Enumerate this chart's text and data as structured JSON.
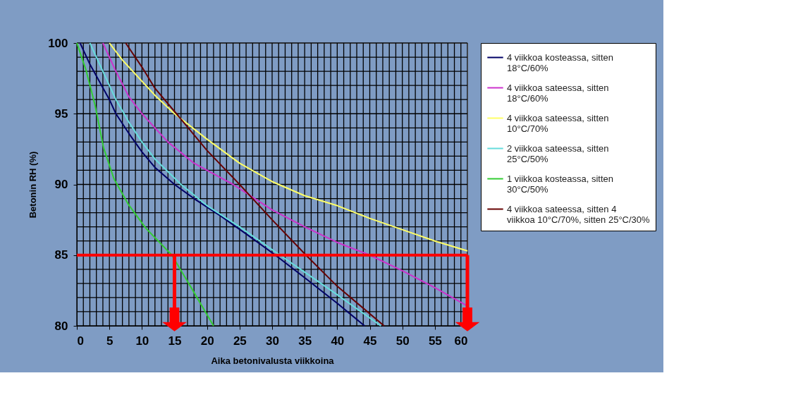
{
  "chart_data": {
    "type": "line",
    "xlabel": "Aika betonivalusta viikkoina",
    "ylabel": "Betonin RH (%)",
    "xlim": [
      0,
      60
    ],
    "xticks": [
      0,
      5,
      10,
      15,
      20,
      25,
      30,
      35,
      40,
      45,
      50,
      55,
      60
    ],
    "ylim": [
      80,
      100
    ],
    "yticks": [
      80,
      85,
      90,
      95,
      100
    ],
    "grid": true,
    "legend": "top right",
    "marker": "none",
    "line_style": "solid",
    "series": [
      {
        "name": "4 viikkoa kosteassa, sitten 18°C/60%",
        "color": "#000066",
        "x": [
          0.5,
          2,
          5,
          6,
          8,
          10,
          12,
          15,
          18,
          22,
          26,
          30.5,
          35,
          40,
          44.2
        ],
        "values": [
          100,
          98.5,
          96,
          95,
          93.6,
          92.3,
          91.2,
          90,
          89,
          87.8,
          86.5,
          85,
          83.4,
          81.6,
          80
        ]
      },
      {
        "name": "4 viikkoa sateessa, sitten 18°C/60%",
        "color": "#cc33cc",
        "x": [
          4,
          6,
          8,
          10,
          14,
          18,
          24,
          30,
          35,
          40,
          45,
          50,
          55,
          60
        ],
        "values": [
          100,
          98,
          96.2,
          95,
          93,
          91.5,
          90,
          88.2,
          87,
          85.9,
          85,
          83.9,
          82.7,
          81.4
        ]
      },
      {
        "name": "4 viikkoa sateessa, sitten 10°C/70%",
        "color": "#ffff66",
        "x": [
          5,
          7,
          10,
          12,
          15,
          20,
          25,
          30,
          35,
          40,
          45,
          50,
          55,
          60
        ],
        "values": [
          100,
          98.8,
          97.3,
          96.3,
          95,
          93.2,
          91.5,
          90.2,
          89.2,
          88.5,
          87.6,
          86.8,
          86,
          85.3
        ]
      },
      {
        "name": "2 viikkoa sateessa, sitten 25°C/50%",
        "color": "#66dddd",
        "x": [
          2,
          3.5,
          5,
          6,
          8,
          10,
          12,
          16,
          20,
          25,
          31.2,
          35,
          40,
          46.7
        ],
        "values": [
          100,
          98.5,
          97,
          96,
          94.4,
          93,
          91.8,
          90,
          88.5,
          87,
          85,
          83.8,
          82.2,
          80
        ]
      },
      {
        "name": "1 viikkoa kosteassa, sitten 30°C/50%",
        "color": "#33cc33",
        "x": [
          0,
          1.4,
          2.8,
          4.1,
          5.7,
          7.9,
          10.6,
          14.6,
          17.7,
          21
        ],
        "values": [
          100,
          98.1,
          95.6,
          92.6,
          90.4,
          88.6,
          86.9,
          85,
          82.6,
          80
        ]
      },
      {
        "name": "4 viikkoa sateessa, sitten 4 viikkoa 10°C/70%, sitten 25°C/30%",
        "color": "#660000",
        "x": [
          7.5,
          10,
          12,
          15.3,
          20,
          25,
          30,
          35.2,
          40,
          47.2
        ],
        "values": [
          100,
          98.3,
          96.8,
          95,
          92.4,
          90,
          87.5,
          85,
          82.8,
          80
        ]
      }
    ],
    "ref_lines": [
      {
        "axis": "y",
        "value": 85,
        "color": "#ff0000"
      },
      {
        "axis": "x",
        "value": 15,
        "color": "#ff0000"
      },
      {
        "axis": "x",
        "value": 60,
        "color": "#ff0000"
      }
    ]
  }
}
